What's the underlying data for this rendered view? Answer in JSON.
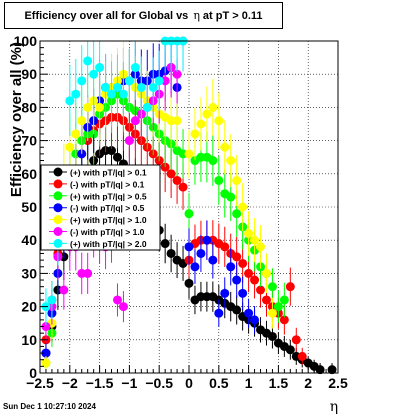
{
  "chart_data": {
    "type": "scatter",
    "title_parts": {
      "before": "Efficiency over all for Global vs",
      "symbol": "η",
      "after": "at pT > 0.11"
    },
    "xlabel": "η",
    "ylabel": "Efficiency over all (%)",
    "xlim": [
      -2.5,
      2.5
    ],
    "ylim": [
      0,
      100
    ],
    "x_ticks": [
      -2.5,
      -2,
      -1.5,
      -1,
      -0.5,
      0,
      0.5,
      1,
      1.5,
      2,
      2.5
    ],
    "x_tick_labels": [
      "−2.5",
      "−2",
      "−1.5",
      "−1",
      "−0.5",
      "0",
      "0.5",
      "1",
      "1.5",
      "2",
      "2.5"
    ],
    "y_ticks": [
      0,
      10,
      20,
      30,
      40,
      50,
      60,
      70,
      80,
      90,
      100
    ],
    "y_tick_labels": [
      "0",
      "10",
      "20",
      "30",
      "40",
      "50",
      "60",
      "70",
      "80",
      "90",
      "100"
    ],
    "grid": true,
    "legend_position": "left, middle",
    "series": [
      {
        "name": "(+) with pT/|q| > 0.1",
        "color": "#000000",
        "x": [
          -2.4,
          -2.3,
          -2.2,
          -2.1,
          -2.0,
          -1.9,
          -1.8,
          -1.7,
          -1.6,
          -1.5,
          -1.4,
          -1.3,
          -1.2,
          -1.1,
          -1.0,
          -0.9,
          -0.8,
          -0.7,
          -0.6,
          -0.5,
          -0.4,
          -0.3,
          -0.2,
          -0.1,
          0.0,
          0.1,
          0.2,
          0.3,
          0.4,
          0.5,
          0.6,
          0.7,
          0.8,
          0.9,
          1.0,
          1.1,
          1.2,
          1.3,
          1.4,
          1.5,
          1.6,
          1.7,
          1.8,
          1.9,
          2.0,
          2.1,
          2.2,
          2.4
        ],
        "y": [
          6,
          14,
          25,
          35,
          43,
          50,
          56,
          61,
          64,
          66,
          67,
          67,
          65,
          63,
          60,
          57,
          54,
          51,
          47,
          43,
          39,
          36,
          34,
          33,
          27,
          22,
          23,
          23,
          23,
          22,
          21,
          20,
          19,
          17,
          16,
          15,
          13,
          12,
          11,
          9,
          8,
          7,
          5,
          4,
          3,
          2,
          1,
          1
        ]
      },
      {
        "name": "(-) with pT/|q| > 0.1",
        "color": "#ff0000",
        "x": [
          -2.4,
          -2.3,
          -2.2,
          -2.1,
          -2.0,
          -1.9,
          -1.8,
          -1.7,
          -1.6,
          -1.5,
          -1.4,
          -1.3,
          -1.2,
          -1.1,
          -1.0,
          -0.9,
          -0.8,
          -0.7,
          -0.6,
          -0.5,
          -0.4,
          -0.3,
          -0.2,
          -0.1,
          0.0,
          0.1,
          0.2,
          0.3,
          0.4,
          0.5,
          0.6,
          0.7,
          0.8,
          0.9,
          1.0,
          1.1,
          1.2,
          1.3,
          1.4,
          1.5,
          1.6,
          1.7,
          1.8,
          1.9
        ],
        "y": [
          10,
          22,
          36,
          46,
          54,
          60,
          66,
          70,
          73,
          75,
          76,
          77,
          77,
          76,
          74,
          72,
          70,
          68,
          66,
          64,
          62,
          60,
          58,
          56,
          34,
          39,
          40,
          40,
          40,
          39,
          38,
          36,
          35,
          33,
          30,
          28,
          25,
          22,
          20,
          18,
          16,
          26,
          10,
          5
        ]
      },
      {
        "name": "(+) with pT/|q| > 0.5",
        "color": "#00ff00",
        "x": [
          -2.4,
          -2.3,
          -2.2,
          -2.1,
          -2.0,
          -1.9,
          -1.8,
          -1.7,
          -1.6,
          -1.5,
          -1.4,
          -1.3,
          -1.2,
          -1.1,
          -1.0,
          -0.9,
          -0.8,
          -0.7,
          -0.6,
          -0.5,
          -0.4,
          -0.3,
          -0.2,
          -0.1,
          0.0,
          0.1,
          0.2,
          0.3,
          0.4,
          0.5,
          0.6,
          0.7,
          0.8,
          0.9,
          1.0,
          1.1,
          1.2,
          1.3,
          1.4,
          1.5,
          1.6
        ],
        "y": [
          3,
          12,
          30,
          52,
          60,
          66,
          70,
          72,
          72,
          78,
          80,
          82,
          84,
          82,
          80,
          79,
          78,
          76,
          74,
          72,
          70,
          69,
          67,
          66,
          48,
          64,
          65,
          65,
          64,
          58,
          54,
          53,
          48,
          44,
          40,
          37,
          32,
          30,
          26,
          20,
          22
        ]
      },
      {
        "name": "(-) with pT/|q| > 0.5",
        "color": "#0000ff",
        "x": [
          -2.4,
          -2.3,
          -2.2,
          -2.1,
          -2.0,
          -1.9,
          -1.8,
          -1.7,
          -1.6,
          -1.5,
          -1.4,
          -1.3,
          -1.2,
          -1.1,
          -1.0,
          -0.9,
          -0.8,
          -0.7,
          -0.6,
          -0.5,
          -0.4,
          -0.3,
          -0.2,
          0.0,
          0.1,
          0.2,
          0.3,
          0.4,
          0.5,
          0.6,
          0.7,
          0.8,
          0.9,
          1.0,
          1.1
        ],
        "y": [
          6,
          18,
          30,
          42,
          54,
          60,
          66,
          74,
          76,
          82,
          86,
          86,
          86,
          88,
          88,
          90,
          88,
          88,
          90,
          90,
          91,
          92,
          86,
          38,
          32,
          36,
          40,
          34,
          18,
          24,
          32,
          28,
          24,
          18,
          16
        ]
      },
      {
        "name": "(+) with pT/|q| > 1.0",
        "color": "#ffff00",
        "x": [
          -2.4,
          -2.3,
          -2.2,
          -2.1,
          -2.0,
          -1.9,
          -1.8,
          -1.7,
          -1.6,
          -1.5,
          -1.4,
          -1.3,
          -1.2,
          -1.1,
          -1.0,
          -0.9,
          -0.8,
          -0.7,
          -0.6,
          -0.5,
          -0.4,
          -0.3,
          -0.2,
          0.0,
          0.1,
          0.2,
          0.3,
          0.4,
          0.5,
          0.6,
          0.7,
          0.8,
          0.9,
          1.0,
          1.1,
          1.2,
          1.3,
          1.4
        ],
        "y": [
          3,
          15,
          40,
          60,
          68,
          72,
          76,
          80,
          82,
          80,
          84,
          86,
          88,
          90,
          88,
          86,
          84,
          82,
          80,
          78,
          77,
          76,
          76,
          66,
          72,
          75,
          78,
          80,
          76,
          68,
          64,
          58,
          50,
          42,
          40,
          38,
          30,
          18
        ]
      },
      {
        "name": "(-) with pT/|q| > 1.0",
        "color": "#ff00ff",
        "x": [
          -2.4,
          -2.3,
          -2.2,
          -2.1,
          -2.0,
          -1.9,
          -1.8,
          -1.7,
          -1.6,
          -1.5,
          -1.4,
          -1.3,
          -1.2,
          -1.1,
          -1.0,
          -0.9,
          -0.8,
          -0.7,
          -0.6,
          -0.5,
          -0.4,
          -0.3,
          -0.2,
          -0.1
        ],
        "y": [
          14,
          20,
          35,
          25,
          38,
          38,
          30,
          30,
          42,
          40,
          38,
          40,
          22,
          20,
          70,
          76,
          78,
          80,
          82,
          84,
          88,
          92,
          90,
          100
        ]
      },
      {
        "name": "(+) with pT/|q| > 2.0",
        "color": "#00ffff",
        "x": [
          -2.4,
          -2.3,
          -2.2,
          -2.1,
          -2.0,
          -1.9,
          -1.8,
          -1.7,
          -1.6,
          -1.5,
          -1.4,
          -1.3,
          -1.2,
          -1.1,
          -1.0,
          -0.9,
          -0.8,
          -0.7,
          -0.6,
          -0.5,
          -0.4,
          -0.3,
          -0.2,
          -0.1
        ],
        "y": [
          20,
          22,
          40,
          45,
          82,
          84,
          88,
          94,
          90,
          92,
          86,
          84,
          86,
          84,
          88,
          92,
          86,
          80,
          86,
          88,
          100,
          100,
          100,
          100
        ]
      }
    ]
  },
  "footer": {
    "timestamp": "Sun Dec  1 10:27:10 2024"
  }
}
